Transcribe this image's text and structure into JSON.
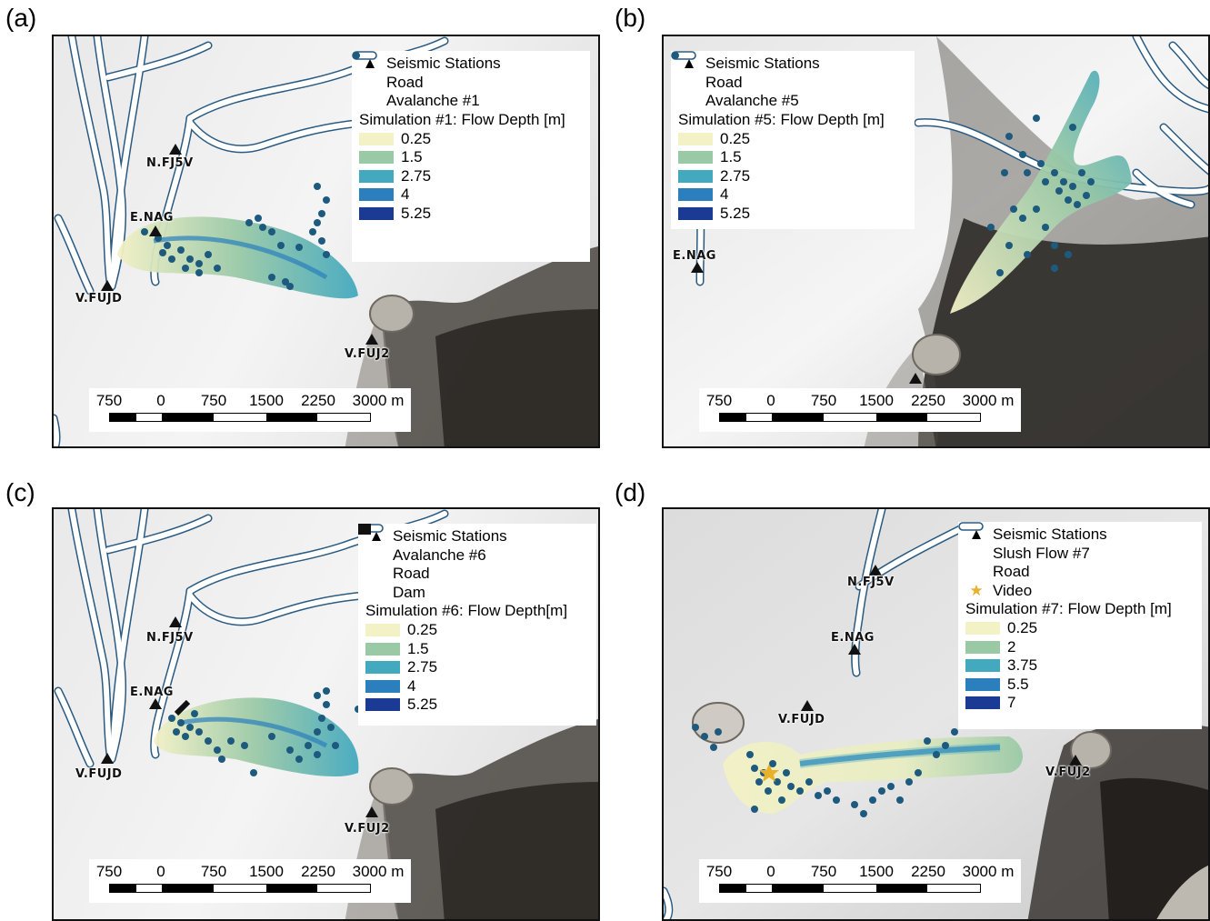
{
  "panels": [
    {
      "letter": "(a)",
      "legend": {
        "seismic": "Seismic Stations",
        "road": "Road",
        "points": "Avalanche #1",
        "title": "Simulation #1: Flow Depth [m]",
        "depths": [
          "0.25",
          "1.5",
          "2.75",
          "4",
          "5.25"
        ]
      },
      "stations": [
        "N.FJ5V",
        "E.NAG",
        "V.FUJD",
        "V.FUJ2"
      ]
    },
    {
      "letter": "(b)",
      "legend": {
        "seismic": "Seismic Stations",
        "road": "Road",
        "points": "Avalanche #5",
        "title": "Simulation #5: Flow Depth [m]",
        "depths": [
          "0.25",
          "1.5",
          "2.75",
          "4",
          "5.25"
        ]
      },
      "stations": [
        "E.NAG"
      ]
    },
    {
      "letter": "(c)",
      "legend": {
        "seismic": "Seismic Stations",
        "points": "Avalanche #6",
        "road": "Road",
        "dam": "Dam",
        "title": "Simulation #6: Flow Depth[m]",
        "depths": [
          "0.25",
          "1.5",
          "2.75",
          "4",
          "5.25"
        ]
      },
      "stations": [
        "N.FJ5V",
        "E.NAG",
        "V.FUJD",
        "V.FUJ2"
      ]
    },
    {
      "letter": "(d)",
      "legend": {
        "seismic": "Seismic Stations",
        "points": "Slush Flow #7",
        "road": "Road",
        "video": "Video",
        "title": "Simulation #7: Flow Depth [m]",
        "depths": [
          "0.25",
          "2",
          "3.75",
          "5.5",
          "7"
        ]
      },
      "stations": [
        "N.FJ5V",
        "E.NAG",
        "V.FUJD",
        "V.FUJ2"
      ]
    }
  ],
  "scale": {
    "labels": [
      "750",
      "0",
      "750",
      "1500",
      "2250",
      "3000 m"
    ]
  },
  "colors": {
    "depth_ramp": [
      "#f3f1c6",
      "#9ac9a6",
      "#43a9bf",
      "#2a7fbc",
      "#1a3a93"
    ],
    "points": "#1d5a7d",
    "road_fill": "#ffffff",
    "road_edge": "#2a5a80",
    "video_star": "#e8b12a",
    "dam": "#111111",
    "station": "#111111"
  }
}
